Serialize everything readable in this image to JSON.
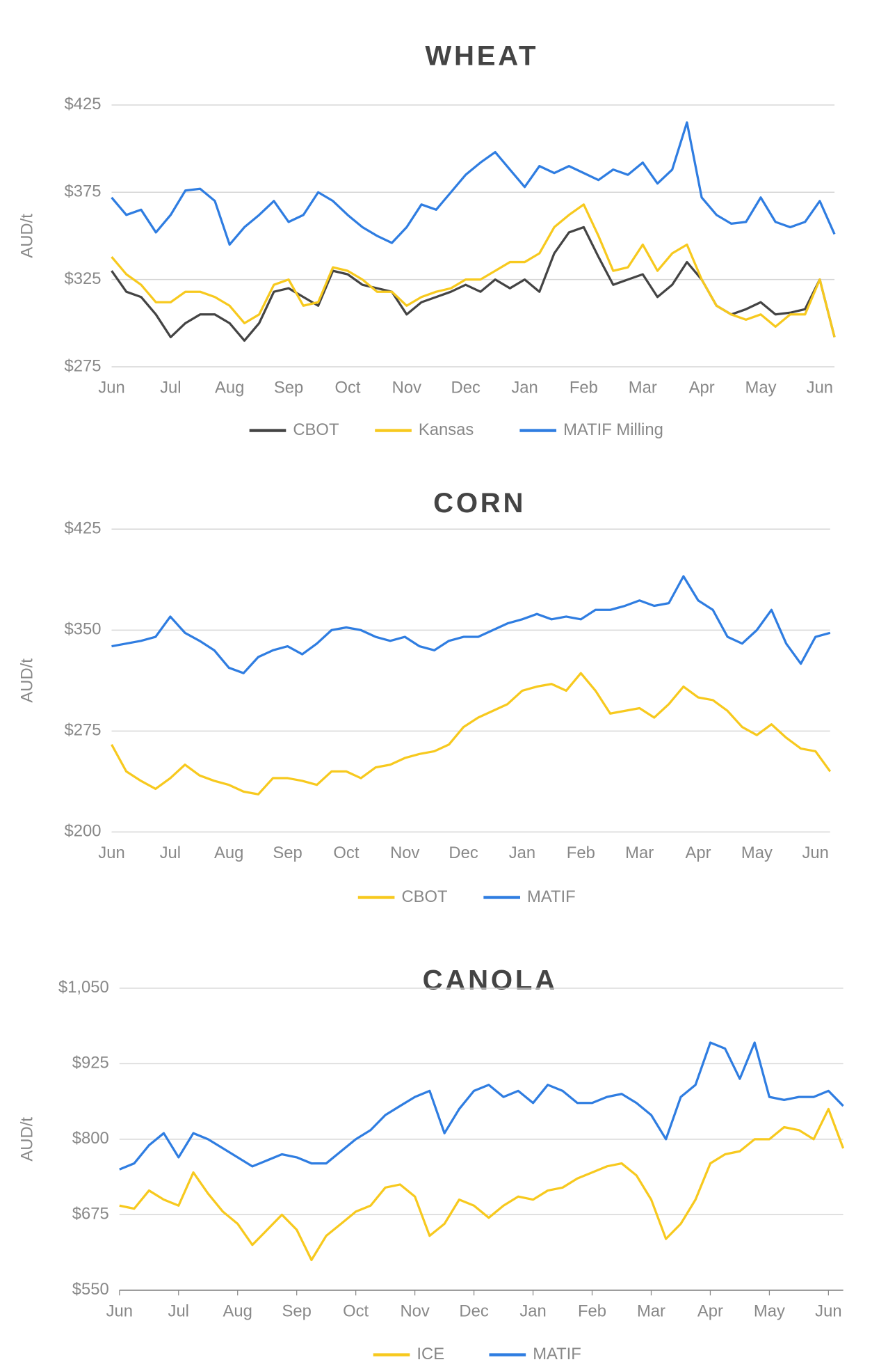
{
  "chart_data": [
    {
      "type": "line",
      "title": "WHEAT",
      "y_label": "AUD/t",
      "categories": [
        "Jun",
        null,
        null,
        null,
        "Jul",
        null,
        null,
        null,
        "Aug",
        null,
        null,
        null,
        "Sep",
        null,
        null,
        null,
        "Oct",
        null,
        null,
        null,
        "Nov",
        null,
        null,
        null,
        "Dec",
        null,
        null,
        null,
        "Jan",
        null,
        null,
        null,
        "Feb",
        null,
        null,
        null,
        "Mar",
        null,
        null,
        null,
        "Apr",
        null,
        null,
        null,
        "May",
        null,
        null,
        null,
        "Jun",
        null
      ],
      "series": [
        {
          "name": "CBOT",
          "color": "#444444",
          "values": [
            330,
            318,
            315,
            305,
            292,
            300,
            305,
            305,
            300,
            290,
            300,
            318,
            320,
            315,
            310,
            330,
            328,
            322,
            320,
            318,
            305,
            312,
            315,
            318,
            322,
            318,
            325,
            320,
            325,
            318,
            340,
            352,
            355,
            338,
            322,
            325,
            328,
            315,
            322,
            335,
            325,
            310,
            305,
            308,
            312,
            305,
            306,
            308,
            325,
            292
          ]
        },
        {
          "name": "Kansas",
          "color": "#f7c91e",
          "values": [
            338,
            328,
            322,
            312,
            312,
            318,
            318,
            315,
            310,
            300,
            305,
            322,
            325,
            310,
            312,
            332,
            330,
            325,
            318,
            318,
            310,
            315,
            318,
            320,
            325,
            325,
            330,
            335,
            335,
            340,
            355,
            362,
            368,
            350,
            330,
            332,
            345,
            330,
            340,
            345,
            325,
            310,
            305,
            302,
            305,
            298,
            305,
            305,
            325,
            292
          ]
        },
        {
          "name": "MATIF Milling",
          "color": "#2f7de1",
          "values": [
            372,
            362,
            365,
            352,
            362,
            376,
            377,
            370,
            345,
            355,
            362,
            370,
            358,
            362,
            375,
            370,
            362,
            355,
            350,
            346,
            355,
            368,
            365,
            375,
            385,
            392,
            398,
            388,
            378,
            390,
            386,
            390,
            386,
            382,
            388,
            385,
            392,
            380,
            388,
            415,
            372,
            362,
            357,
            358,
            372,
            358,
            355,
            358,
            370,
            351
          ]
        }
      ],
      "ylim": [
        275,
        425
      ],
      "yticks": [
        {
          "value": 275,
          "label": "$275"
        },
        {
          "value": 325,
          "label": "$325"
        },
        {
          "value": 375,
          "label": "$375"
        },
        {
          "value": 425,
          "label": "$425"
        }
      ],
      "grid": true
    },
    {
      "type": "line",
      "title": "CORN",
      "y_label": "AUD/t",
      "categories": [
        "Jun",
        null,
        null,
        null,
        "Jul",
        null,
        null,
        null,
        "Aug",
        null,
        null,
        null,
        "Sep",
        null,
        null,
        null,
        "Oct",
        null,
        null,
        null,
        "Nov",
        null,
        null,
        null,
        "Dec",
        null,
        null,
        null,
        "Jan",
        null,
        null,
        null,
        "Feb",
        null,
        null,
        null,
        "Mar",
        null,
        null,
        null,
        "Apr",
        null,
        null,
        null,
        "May",
        null,
        null,
        null,
        "Jun",
        null
      ],
      "series": [
        {
          "name": "CBOT",
          "color": "#f7c91e",
          "values": [
            265,
            245,
            238,
            232,
            240,
            250,
            242,
            238,
            235,
            230,
            228,
            240,
            240,
            238,
            235,
            245,
            245,
            240,
            248,
            250,
            255,
            258,
            260,
            265,
            278,
            285,
            290,
            295,
            305,
            308,
            310,
            305,
            318,
            305,
            288,
            290,
            292,
            285,
            295,
            308,
            300,
            298,
            290,
            278,
            272,
            280,
            270,
            262,
            260,
            245
          ]
        },
        {
          "name": "MATIF",
          "color": "#2f7de1",
          "values": [
            338,
            340,
            342,
            345,
            360,
            348,
            342,
            335,
            322,
            318,
            330,
            335,
            338,
            332,
            340,
            350,
            352,
            350,
            345,
            342,
            345,
            338,
            335,
            342,
            345,
            345,
            350,
            355,
            358,
            362,
            358,
            360,
            358,
            365,
            365,
            368,
            372,
            368,
            370,
            390,
            372,
            365,
            345,
            340,
            350,
            365,
            340,
            325,
            345,
            348
          ]
        }
      ],
      "ylim": [
        200,
        425
      ],
      "yticks": [
        {
          "value": 200,
          "label": "$200"
        },
        {
          "value": 275,
          "label": "$275"
        },
        {
          "value": 350,
          "label": "$350"
        },
        {
          "value": 425,
          "label": "$425"
        }
      ],
      "grid": true
    },
    {
      "type": "line",
      "title": "CANOLA",
      "y_label": "AUD/t",
      "categories": [
        "Jun",
        null,
        null,
        null,
        "Jul",
        null,
        null,
        null,
        "Aug",
        null,
        null,
        null,
        "Sep",
        null,
        null,
        null,
        "Oct",
        null,
        null,
        null,
        "Nov",
        null,
        null,
        null,
        "Dec",
        null,
        null,
        null,
        "Jan",
        null,
        null,
        null,
        "Feb",
        null,
        null,
        null,
        "Mar",
        null,
        null,
        null,
        "Apr",
        null,
        null,
        null,
        "May",
        null,
        null,
        null,
        "Jun",
        null
      ],
      "series": [
        {
          "name": "ICE",
          "color": "#f7c91e",
          "values": [
            690,
            685,
            715,
            700,
            690,
            745,
            710,
            680,
            660,
            625,
            650,
            675,
            650,
            600,
            640,
            660,
            680,
            690,
            720,
            725,
            705,
            640,
            660,
            700,
            690,
            670,
            690,
            705,
            700,
            715,
            720,
            735,
            745,
            755,
            760,
            740,
            700,
            635,
            660,
            700,
            760,
            775,
            780,
            800,
            800,
            820,
            815,
            800,
            850,
            785
          ]
        },
        {
          "name": "MATIF",
          "color": "#2f7de1",
          "values": [
            750,
            760,
            790,
            810,
            770,
            810,
            800,
            785,
            770,
            755,
            765,
            775,
            770,
            760,
            760,
            780,
            800,
            815,
            840,
            855,
            870,
            880,
            810,
            850,
            880,
            890,
            870,
            880,
            860,
            890,
            880,
            860,
            860,
            870,
            875,
            860,
            840,
            800,
            870,
            890,
            960,
            950,
            900,
            960,
            870,
            865,
            870,
            870,
            880,
            855
          ]
        }
      ],
      "ylim": [
        550,
        1050
      ],
      "yticks": [
        {
          "value": 550,
          "label": "$550"
        },
        {
          "value": 675,
          "label": "$675"
        },
        {
          "value": 800,
          "label": "$800"
        },
        {
          "value": 925,
          "label": "$925"
        },
        {
          "value": 1050,
          "label": "$1,050"
        }
      ],
      "grid": true
    }
  ]
}
